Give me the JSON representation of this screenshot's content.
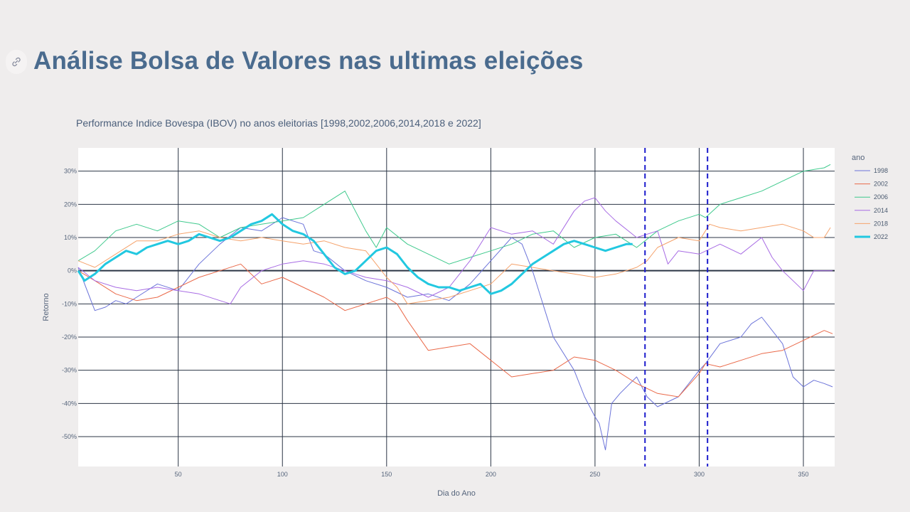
{
  "page": {
    "title": "Análise Bolsa de Valores nas ultimas eleições",
    "link_icon": "link-icon"
  },
  "chart_data": {
    "type": "line",
    "title": "Performance Indice Bovespa (IBOV) no anos eleitorias [1998,2002,2006,2014,2018 e 2022]",
    "xlabel": "Dia do Ano",
    "ylabel": "Retorno",
    "xlim": [
      2,
      365
    ],
    "ylim": [
      -0.59,
      0.37
    ],
    "x_ticks": [
      50,
      100,
      150,
      200,
      250,
      300,
      350
    ],
    "y_ticks": [
      0.3,
      0.2,
      0.1,
      0,
      -0.1,
      -0.2,
      -0.3,
      -0.4,
      -0.5
    ],
    "y_tick_labels": [
      "30%",
      "20%",
      "10%",
      "0%",
      "-10%",
      "-20%",
      "-30%",
      "-40%",
      "-50%"
    ],
    "grid": true,
    "legend_title": "ano",
    "legend_position": "right",
    "vertical_reference_lines_x": [
      274,
      304
    ],
    "series": [
      {
        "name": "1998",
        "color": "#6b73d9",
        "width": 1,
        "x": [
          2,
          10,
          15,
          20,
          25,
          30,
          40,
          50,
          60,
          70,
          80,
          90,
          100,
          110,
          115,
          120,
          130,
          140,
          150,
          160,
          170,
          180,
          190,
          200,
          210,
          215,
          220,
          225,
          230,
          240,
          245,
          250,
          252,
          255,
          258,
          262,
          270,
          275,
          280,
          290,
          300,
          303,
          310,
          320,
          325,
          330,
          340,
          345,
          350,
          355,
          360,
          364
        ],
        "y": [
          0.01,
          -0.12,
          -0.11,
          -0.09,
          -0.1,
          -0.08,
          -0.04,
          -0.06,
          0.02,
          0.08,
          0.13,
          0.12,
          0.16,
          0.14,
          0.06,
          0.05,
          0.0,
          -0.03,
          -0.05,
          -0.08,
          -0.07,
          -0.09,
          -0.04,
          0.03,
          0.1,
          0.08,
          0.0,
          -0.1,
          -0.2,
          -0.3,
          -0.38,
          -0.44,
          -0.46,
          -0.54,
          -0.4,
          -0.37,
          -0.32,
          -0.38,
          -0.41,
          -0.38,
          -0.3,
          -0.28,
          -0.22,
          -0.2,
          -0.16,
          -0.14,
          -0.22,
          -0.32,
          -0.35,
          -0.33,
          -0.34,
          -0.35
        ]
      },
      {
        "name": "2002",
        "color": "#ea6a4a",
        "width": 1,
        "x": [
          2,
          10,
          20,
          30,
          40,
          50,
          60,
          70,
          80,
          90,
          100,
          110,
          120,
          130,
          140,
          150,
          155,
          160,
          170,
          180,
          190,
          200,
          210,
          220,
          230,
          240,
          250,
          260,
          270,
          280,
          290,
          300,
          303,
          310,
          320,
          330,
          340,
          350,
          360,
          364
        ],
        "y": [
          0.0,
          -0.03,
          -0.07,
          -0.09,
          -0.08,
          -0.05,
          -0.02,
          0.0,
          0.02,
          -0.04,
          -0.02,
          -0.05,
          -0.08,
          -0.12,
          -0.1,
          -0.08,
          -0.1,
          -0.15,
          -0.24,
          -0.23,
          -0.22,
          -0.27,
          -0.32,
          -0.31,
          -0.3,
          -0.26,
          -0.27,
          -0.3,
          -0.34,
          -0.37,
          -0.38,
          -0.31,
          -0.28,
          -0.29,
          -0.27,
          -0.25,
          -0.24,
          -0.21,
          -0.18,
          -0.19
        ]
      },
      {
        "name": "2006",
        "color": "#3ec98c",
        "width": 1,
        "x": [
          2,
          10,
          20,
          30,
          40,
          50,
          60,
          70,
          80,
          90,
          100,
          110,
          120,
          130,
          135,
          140,
          145,
          150,
          160,
          170,
          180,
          190,
          200,
          210,
          220,
          230,
          240,
          250,
          260,
          270,
          280,
          290,
          300,
          303,
          310,
          320,
          330,
          340,
          350,
          360,
          363
        ],
        "y": [
          0.03,
          0.06,
          0.12,
          0.14,
          0.12,
          0.15,
          0.14,
          0.1,
          0.13,
          0.14,
          0.15,
          0.16,
          0.2,
          0.24,
          0.18,
          0.12,
          0.07,
          0.13,
          0.08,
          0.05,
          0.02,
          0.04,
          0.06,
          0.08,
          0.11,
          0.12,
          0.07,
          0.1,
          0.11,
          0.07,
          0.12,
          0.15,
          0.17,
          0.16,
          0.2,
          0.22,
          0.24,
          0.27,
          0.3,
          0.31,
          0.32
        ]
      },
      {
        "name": "2014",
        "color": "#a86ce4",
        "width": 1,
        "x": [
          2,
          10,
          20,
          30,
          40,
          50,
          60,
          70,
          75,
          80,
          90,
          100,
          110,
          120,
          130,
          140,
          150,
          160,
          170,
          180,
          190,
          200,
          210,
          220,
          230,
          240,
          245,
          250,
          255,
          260,
          270,
          280,
          285,
          290,
          300,
          310,
          320,
          330,
          335,
          340,
          345,
          350,
          355,
          364
        ],
        "y": [
          0.01,
          -0.03,
          -0.05,
          -0.06,
          -0.05,
          -0.06,
          -0.07,
          -0.09,
          -0.1,
          -0.05,
          0.0,
          0.02,
          0.03,
          0.02,
          0.0,
          -0.02,
          -0.03,
          -0.05,
          -0.08,
          -0.05,
          0.03,
          0.13,
          0.11,
          0.12,
          0.08,
          0.18,
          0.21,
          0.22,
          0.18,
          0.15,
          0.1,
          0.12,
          0.02,
          0.06,
          0.05,
          0.08,
          0.05,
          0.1,
          0.04,
          0.0,
          -0.03,
          -0.06,
          0.0,
          0.0
        ]
      },
      {
        "name": "2018",
        "color": "#f5a26b",
        "width": 1,
        "x": [
          2,
          10,
          20,
          30,
          40,
          50,
          60,
          70,
          80,
          90,
          100,
          110,
          120,
          130,
          140,
          150,
          155,
          160,
          170,
          180,
          190,
          200,
          210,
          220,
          230,
          240,
          250,
          260,
          270,
          275,
          280,
          290,
          300,
          305,
          310,
          320,
          330,
          340,
          350,
          355,
          360,
          363
        ],
        "y": [
          0.03,
          0.01,
          0.05,
          0.09,
          0.09,
          0.11,
          0.12,
          0.1,
          0.09,
          0.1,
          0.09,
          0.08,
          0.09,
          0.07,
          0.06,
          -0.02,
          -0.05,
          -0.1,
          -0.09,
          -0.08,
          -0.06,
          -0.04,
          0.02,
          0.01,
          0.0,
          -0.01,
          -0.02,
          -0.01,
          0.01,
          0.03,
          0.07,
          0.1,
          0.09,
          0.14,
          0.13,
          0.12,
          0.13,
          0.14,
          0.12,
          0.1,
          0.1,
          0.13
        ]
      },
      {
        "name": "2022",
        "color": "#22c8e0",
        "width": 3,
        "x": [
          2,
          5,
          10,
          15,
          20,
          25,
          30,
          35,
          40,
          45,
          50,
          55,
          60,
          65,
          70,
          75,
          80,
          85,
          90,
          95,
          100,
          105,
          110,
          115,
          120,
          125,
          130,
          135,
          140,
          145,
          150,
          155,
          160,
          165,
          170,
          175,
          180,
          185,
          190,
          195,
          200,
          205,
          210,
          215,
          220,
          225,
          230,
          235,
          240,
          245,
          250,
          255,
          260,
          265,
          268
        ],
        "y": [
          0.0,
          -0.03,
          -0.01,
          0.02,
          0.04,
          0.06,
          0.05,
          0.07,
          0.08,
          0.09,
          0.08,
          0.09,
          0.11,
          0.1,
          0.09,
          0.1,
          0.12,
          0.14,
          0.15,
          0.17,
          0.14,
          0.12,
          0.11,
          0.09,
          0.05,
          0.01,
          -0.01,
          0.0,
          0.03,
          0.06,
          0.07,
          0.05,
          0.01,
          -0.02,
          -0.04,
          -0.05,
          -0.05,
          -0.06,
          -0.05,
          -0.04,
          -0.07,
          -0.06,
          -0.04,
          -0.01,
          0.02,
          0.04,
          0.06,
          0.08,
          0.09,
          0.08,
          0.07,
          0.06,
          0.07,
          0.08,
          0.08
        ]
      }
    ]
  }
}
